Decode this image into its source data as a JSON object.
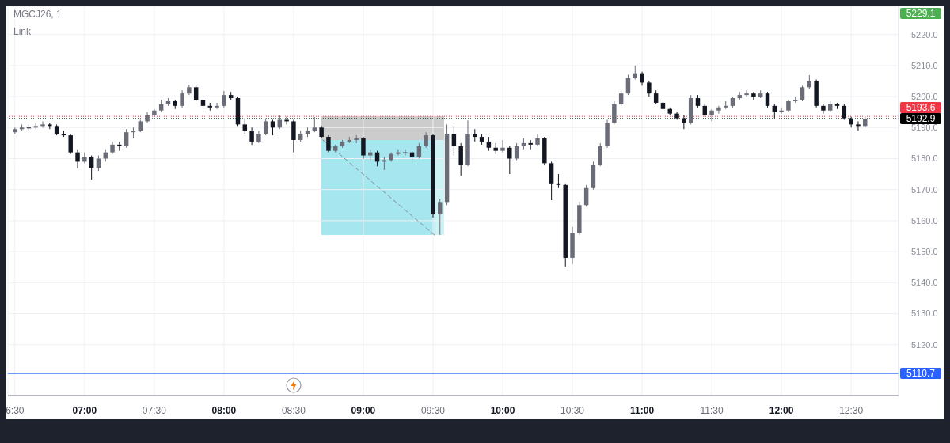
{
  "chart_data": {
    "type": "candlestick",
    "title": "MGCJ26, 1",
    "subtitle": "Link",
    "x": [
      6.5,
      6.55,
      6.6,
      6.65,
      6.7,
      6.75,
      6.8,
      6.85,
      6.9,
      6.95,
      7,
      7.05,
      7.1,
      7.15,
      7.2,
      7.25,
      7.3,
      7.35,
      7.4,
      7.45,
      7.5,
      7.55,
      7.6,
      7.65,
      7.7,
      7.75,
      7.8,
      7.85,
      7.9,
      7.95,
      8,
      8.05,
      8.1,
      8.15,
      8.2,
      8.25,
      8.3,
      8.35,
      8.4,
      8.45,
      8.5,
      8.55,
      8.6,
      8.65,
      8.7,
      8.75,
      8.8,
      8.85,
      8.9,
      8.95,
      9,
      9.05,
      9.1,
      9.15,
      9.2,
      9.25,
      9.3,
      9.35,
      9.4,
      9.45,
      9.5,
      9.55,
      9.6,
      9.65,
      9.7,
      9.75,
      9.8,
      9.85,
      9.9,
      9.95,
      10,
      10.05,
      10.1,
      10.15,
      10.2,
      10.25,
      10.3,
      10.35,
      10.4,
      10.45,
      10.5,
      10.55,
      10.6,
      10.65,
      10.7,
      10.75,
      10.8,
      10.85,
      10.9,
      10.95,
      11,
      11.05,
      11.1,
      11.15,
      11.2,
      11.25,
      11.3,
      11.35,
      11.4,
      11.45,
      11.5,
      11.55,
      11.6,
      11.65,
      11.7,
      11.75,
      11.8,
      11.85,
      11.9,
      11.95,
      12,
      12.05,
      12.1,
      12.15,
      12.2,
      12.25,
      12.3,
      12.35,
      12.4,
      12.45,
      12.5,
      12.55,
      12.6
    ],
    "ohlc": [
      [
        5188.5,
        5190,
        5188,
        5189.5
      ],
      [
        5189.5,
        5191,
        5189,
        5190
      ],
      [
        5190,
        5191,
        5189,
        5190
      ],
      [
        5190,
        5191.5,
        5189.5,
        5190.5
      ],
      [
        5190.5,
        5192,
        5190,
        5191
      ],
      [
        5191,
        5191.5,
        5189.5,
        5190.5
      ],
      [
        5190.5,
        5191,
        5187.5,
        5188
      ],
      [
        5188,
        5189,
        5187,
        5187.5
      ],
      [
        5187.5,
        5188,
        5181.5,
        5182
      ],
      [
        5182,
        5183,
        5176.8,
        5179
      ],
      [
        5179,
        5182,
        5178.5,
        5180.5
      ],
      [
        5180.5,
        5181,
        5173.2,
        5177
      ],
      [
        5177,
        5181,
        5176,
        5180
      ],
      [
        5180,
        5183,
        5179,
        5182
      ],
      [
        5182,
        5185.5,
        5181.5,
        5184.5
      ],
      [
        5184.5,
        5185.5,
        5182.5,
        5184
      ],
      [
        5184,
        5189.5,
        5183.5,
        5188.5
      ],
      [
        5188.5,
        5190,
        5186.5,
        5189
      ],
      [
        5189,
        5192.5,
        5188.5,
        5192
      ],
      [
        5192,
        5195,
        5191.5,
        5194
      ],
      [
        5194,
        5196,
        5193.5,
        5195.5
      ],
      [
        5195.5,
        5199,
        5195,
        5197.5
      ],
      [
        5197.5,
        5199.5,
        5197,
        5198.5
      ],
      [
        5198.5,
        5199,
        5196,
        5197
      ],
      [
        5197,
        5202,
        5196.5,
        5201
      ],
      [
        5201,
        5203.8,
        5200.5,
        5203
      ],
      [
        5203,
        5203.5,
        5198.5,
        5199
      ],
      [
        5199,
        5199.5,
        5196,
        5197
      ],
      [
        5197,
        5198,
        5195.5,
        5196.5
      ],
      [
        5196.5,
        5198,
        5196,
        5197
      ],
      [
        5197,
        5201.8,
        5196.5,
        5200.5
      ],
      [
        5200.5,
        5201.5,
        5199,
        5199.5
      ],
      [
        5199.5,
        5200,
        5190.5,
        5191
      ],
      [
        5191,
        5193,
        5188,
        5189
      ],
      [
        5189,
        5190,
        5184.4,
        5185.5
      ],
      [
        5185.5,
        5189,
        5185,
        5188
      ],
      [
        5188,
        5193,
        5187.5,
        5192
      ],
      [
        5192,
        5192.5,
        5187.5,
        5190
      ],
      [
        5190,
        5194,
        5189.5,
        5192.5
      ],
      [
        5192.5,
        5193.5,
        5191,
        5192
      ],
      [
        5192,
        5192.5,
        5182,
        5186
      ],
      [
        5186,
        5189,
        5185.5,
        5188
      ],
      [
        5188,
        5190,
        5187,
        5189
      ],
      [
        5189,
        5193.4,
        5188.5,
        5190
      ],
      [
        5190,
        5190.5,
        5186.5,
        5187
      ],
      [
        5187,
        5187.5,
        5182,
        5182.5
      ],
      [
        5182.5,
        5184.5,
        5182,
        5184
      ],
      [
        5184,
        5186,
        5183.5,
        5185.5
      ],
      [
        5185.5,
        5187,
        5185,
        5186
      ],
      [
        5186,
        5187.5,
        5185,
        5186.5
      ],
      [
        5186.5,
        5187,
        5180,
        5181
      ],
      [
        5181,
        5183,
        5179.5,
        5182
      ],
      [
        5182,
        5182.5,
        5177.5,
        5179
      ],
      [
        5179,
        5180.5,
        5176.3,
        5179.5
      ],
      [
        5179.5,
        5182,
        5179,
        5181.5
      ],
      [
        5181.5,
        5183,
        5181,
        5182
      ],
      [
        5182,
        5183,
        5181,
        5182
      ],
      [
        5182,
        5182.5,
        5179.5,
        5180.5
      ],
      [
        5180.5,
        5185,
        5180,
        5184
      ],
      [
        5184,
        5188.5,
        5183.5,
        5187.5
      ],
      [
        5187.5,
        5188,
        5161,
        5162
      ],
      [
        5162,
        5167,
        5155.4,
        5166
      ],
      [
        5166,
        5191,
        5165,
        5188
      ],
      [
        5188,
        5190.5,
        5181,
        5184
      ],
      [
        5184,
        5185,
        5174.5,
        5178
      ],
      [
        5178,
        5192.3,
        5177.5,
        5188
      ],
      [
        5188,
        5189.5,
        5185.5,
        5187
      ],
      [
        5187,
        5188,
        5184.5,
        5185.5
      ],
      [
        5185.5,
        5187,
        5182.5,
        5183.5
      ],
      [
        5183.5,
        5185,
        5181.5,
        5182.5
      ],
      [
        5182.5,
        5186,
        5182,
        5183.5
      ],
      [
        5183.5,
        5184,
        5175,
        5180
      ],
      [
        5180,
        5185,
        5179.5,
        5184
      ],
      [
        5184,
        5186.5,
        5183,
        5185
      ],
      [
        5185,
        5186,
        5183,
        5184.5
      ],
      [
        5184.5,
        5188,
        5184,
        5186.5
      ],
      [
        5186.5,
        5187,
        5178,
        5178.5
      ],
      [
        5178.5,
        5179,
        5166.6,
        5172
      ],
      [
        5172,
        5175,
        5170.5,
        5171.5
      ],
      [
        5171.5,
        5172,
        5145.2,
        5148
      ],
      [
        5148,
        5158,
        5146,
        5156
      ],
      [
        5156,
        5166,
        5155.5,
        5165
      ],
      [
        5165,
        5171.5,
        5164.5,
        5170.5
      ],
      [
        5170.5,
        5179,
        5170,
        5178
      ],
      [
        5178,
        5185,
        5177.5,
        5184
      ],
      [
        5184,
        5192.5,
        5183.5,
        5191.5
      ],
      [
        5191.5,
        5198.5,
        5191,
        5197.5
      ],
      [
        5197.5,
        5202,
        5197,
        5201
      ],
      [
        5201,
        5207,
        5200.5,
        5206
      ],
      [
        5206,
        5210,
        5205.5,
        5207.5
      ],
      [
        5207.5,
        5208,
        5203.5,
        5204.5
      ],
      [
        5204.5,
        5205,
        5200,
        5201
      ],
      [
        5201,
        5202,
        5197.5,
        5198
      ],
      [
        5198,
        5199,
        5195.5,
        5196
      ],
      [
        5196,
        5196.5,
        5194,
        5194.5
      ],
      [
        5194.5,
        5195,
        5192.5,
        5193
      ],
      [
        5193,
        5194,
        5189.5,
        5191.5
      ],
      [
        5191.5,
        5200.5,
        5191,
        5199.5
      ],
      [
        5199.5,
        5200.5,
        5196.5,
        5197
      ],
      [
        5197,
        5197.5,
        5193.5,
        5194
      ],
      [
        5194,
        5196,
        5192,
        5195.5
      ],
      [
        5195.5,
        5197,
        5194.5,
        5196.5
      ],
      [
        5196.5,
        5198.5,
        5196,
        5197
      ],
      [
        5197,
        5200,
        5196.5,
        5199.5
      ],
      [
        5199.5,
        5201.5,
        5199,
        5200.5
      ],
      [
        5200.5,
        5202,
        5200,
        5201
      ],
      [
        5201,
        5201.5,
        5199,
        5200
      ],
      [
        5200,
        5202,
        5199.5,
        5201
      ],
      [
        5201,
        5201.5,
        5196.5,
        5197
      ],
      [
        5197,
        5197.5,
        5193,
        5195
      ],
      [
        5195,
        5196.5,
        5194.5,
        5195.5
      ],
      [
        5195.5,
        5199,
        5195,
        5198.5
      ],
      [
        5198.5,
        5200,
        5198,
        5199
      ],
      [
        5199,
        5203.5,
        5198.5,
        5203
      ],
      [
        5203,
        5206.9,
        5202.5,
        5205
      ],
      [
        5205,
        5205.5,
        5196.5,
        5197
      ],
      [
        5197,
        5197.5,
        5194.5,
        5195.5
      ],
      [
        5195.5,
        5198.5,
        5195,
        5197.5
      ],
      [
        5197.5,
        5198,
        5196,
        5197
      ],
      [
        5197,
        5197.5,
        5192.5,
        5193
      ],
      [
        5193,
        5193.5,
        5190,
        5191
      ],
      [
        5191,
        5192,
        5189,
        5190.5
      ],
      [
        5190.5,
        5193.6,
        5190,
        5192.9
      ]
    ],
    "colors": [
      "#6a6d78",
      "#6a6d78",
      "#131722",
      "#6a6d78",
      "#6a6d78",
      "#131722",
      "#131722",
      "#131722",
      "#131722",
      "#131722",
      "#6a6d78",
      "#131722",
      "#6a6d78",
      "#6a6d78",
      "#6a6d78",
      "#131722",
      "#6a6d78",
      "#6a6d78",
      "#6a6d78",
      "#6a6d78",
      "#6a6d78",
      "#6a6d78",
      "#6a6d78",
      "#131722",
      "#6a6d78",
      "#6a6d78",
      "#131722",
      "#131722",
      "#131722",
      "#6a6d78",
      "#6a6d78",
      "#131722",
      "#131722",
      "#131722",
      "#131722",
      "#6a6d78",
      "#6a6d78",
      "#131722",
      "#6a6d78",
      "#131722",
      "#131722",
      "#6a6d78",
      "#6a6d78",
      "#6a6d78",
      "#131722",
      "#131722",
      "#6a6d78",
      "#6a6d78",
      "#6a6d78",
      "#6a6d78",
      "#131722",
      "#6a6d78",
      "#131722",
      "#6a6d78",
      "#6a6d78",
      "#6a6d78",
      "#131722",
      "#131722",
      "#6a6d78",
      "#6a6d78",
      "#131722",
      "#6a6d78",
      "#6a6d78",
      "#131722",
      "#131722",
      "#6a6d78",
      "#131722",
      "#131722",
      "#131722",
      "#131722",
      "#6a6d78",
      "#131722",
      "#6a6d78",
      "#6a6d78",
      "#131722",
      "#6a6d78",
      "#131722",
      "#131722",
      "#131722",
      "#131722",
      "#6a6d78",
      "#6a6d78",
      "#6a6d78",
      "#6a6d78",
      "#6a6d78",
      "#6a6d78",
      "#6a6d78",
      "#6a6d78",
      "#6a6d78",
      "#6a6d78",
      "#131722",
      "#131722",
      "#131722",
      "#131722",
      "#131722",
      "#131722",
      "#131722",
      "#6a6d78",
      "#131722",
      "#131722",
      "#6a6d78",
      "#6a6d78",
      "#6a6d78",
      "#6a6d78",
      "#6a6d78",
      "#6a6d78",
      "#131722",
      "#6a6d78",
      "#131722",
      "#131722",
      "#6a6d78",
      "#6a6d78",
      "#6a6d78",
      "#6a6d78",
      "#6a6d78",
      "#131722",
      "#131722",
      "#6a6d78",
      "#131722",
      "#131722",
      "#131722",
      "#131722",
      "#6a6d78"
    ],
    "series": [
      {
        "type": "line",
        "x": [
          8.71,
          9.51
        ],
        "values": [
          5186,
          5155.4
        ],
        "color": "#868993",
        "line_style": "dashed"
      }
    ],
    "xlim": [
      6.45,
      12.84
    ],
    "xticks": [
      {
        "value": 6.5,
        "label": "6:30"
      },
      {
        "value": 7,
        "label": "07:00"
      },
      {
        "value": 7.5,
        "label": "07:30"
      },
      {
        "value": 8,
        "label": "08:00"
      },
      {
        "value": 8.5,
        "label": "08:30"
      },
      {
        "value": 9,
        "label": "09:00"
      },
      {
        "value": 9.5,
        "label": "09:30"
      },
      {
        "value": 10,
        "label": "10:00"
      },
      {
        "value": 10.5,
        "label": "10:30"
      },
      {
        "value": 11,
        "label": "11:00"
      },
      {
        "value": 11.5,
        "label": "11:30"
      },
      {
        "value": 12,
        "label": "12:00"
      },
      {
        "value": 12.5,
        "label": "12:30"
      }
    ],
    "ylim": [
      5103.6,
      5229.1
    ],
    "yticks": [
      {
        "value": 5120,
        "label": "5120.0"
      },
      {
        "value": 5130,
        "label": "5130.0"
      },
      {
        "value": 5140,
        "label": "5140.0"
      },
      {
        "value": 5150,
        "label": "5150.0"
      },
      {
        "value": 5160,
        "label": "5160.0"
      },
      {
        "value": 5170,
        "label": "5170.0"
      },
      {
        "value": 5180,
        "label": "5180.0"
      },
      {
        "value": 5190,
        "label": "5190.0"
      },
      {
        "value": 5200,
        "label": "5200.0"
      },
      {
        "value": 5210,
        "label": "5210.0"
      },
      {
        "value": 5220,
        "label": "5220.0"
      }
    ],
    "grid": true,
    "ref_lines": [
      {
        "axis": "y",
        "value": 5193.6,
        "label": "5193.6",
        "color": "#f23645",
        "line_style": "dotted"
      },
      {
        "axis": "y",
        "value": 5192.9,
        "label": "5192.9",
        "color": "#000000",
        "line_style": "dotted"
      },
      {
        "axis": "y",
        "value": 5110.7,
        "label": "5110.7",
        "color": "#2962ff",
        "line_style": "solid"
      }
    ],
    "annotations": [
      "5229.1"
    ]
  }
}
